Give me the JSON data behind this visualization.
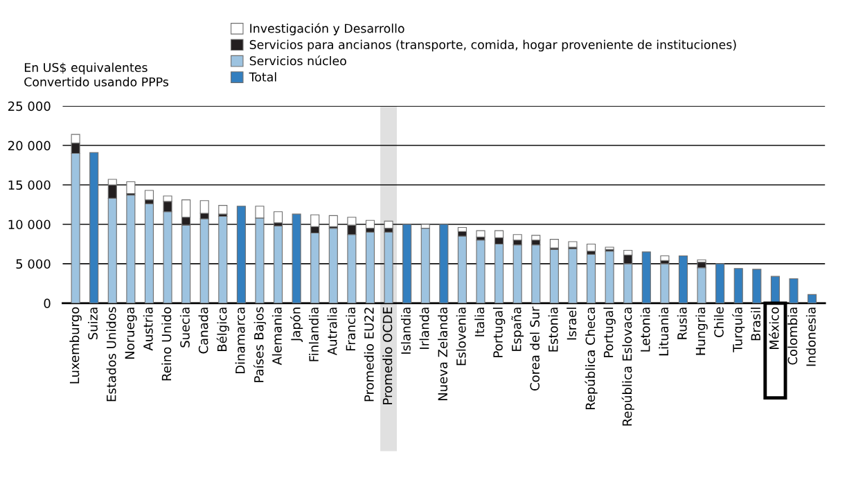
{
  "chart_data": {
    "type": "bar",
    "stacked": true,
    "ylabel": "En US$ equivalentes\nConvertido usando PPPs",
    "categories": [
      "Luxemburgo",
      "Suiza",
      "Estados Unidos",
      "Noruega",
      "Austria",
      "Reino Unido",
      "Suecia",
      "Canada",
      "Bélgica",
      "Dinamarca",
      "Países Bajos",
      "Alemania",
      "Japón",
      "Finlandia",
      "Autralia",
      "Francia",
      "Promedio EU22",
      "Promedio OCDE",
      "Islandia",
      "Irlanda",
      "Nueva Zelanda",
      "Eslovenia",
      "Italia",
      "Portugal",
      "España",
      "Corea del Sur",
      "Estonia",
      "Israel",
      "República Checa",
      "Portugal",
      "República Eslovaca",
      "Letonia",
      "Lituania",
      "Rusia",
      "Hungria",
      "Chile",
      "Turquía",
      "Brasil",
      "México",
      "Colombia",
      "Indonesia"
    ],
    "series": [
      {
        "name": "Total",
        "color": "#337fbf",
        "values": [
          null,
          19100,
          null,
          null,
          null,
          null,
          null,
          null,
          null,
          12300,
          null,
          null,
          11300,
          null,
          null,
          null,
          null,
          null,
          10000,
          null,
          10000,
          null,
          null,
          null,
          null,
          null,
          null,
          null,
          null,
          null,
          null,
          6500,
          null,
          6000,
          null,
          5000,
          4400,
          4300,
          3400,
          3100,
          1100
        ]
      },
      {
        "name": "Servicios núcleo",
        "color": "#9dc3e0",
        "values": [
          19000,
          null,
          13300,
          13700,
          12600,
          11600,
          9900,
          10700,
          11000,
          null,
          10800,
          9800,
          null,
          8900,
          9500,
          8700,
          9000,
          9000,
          null,
          9500,
          null,
          8500,
          8000,
          7500,
          7400,
          7400,
          6800,
          6900,
          6200,
          6600,
          5000,
          null,
          5000,
          null,
          4500,
          null,
          null,
          null,
          null,
          null,
          null
        ]
      },
      {
        "name": "Servicios para ancianos (transporte, comida, hogar proveniente de instituciones)",
        "color": "#231f20",
        "values": [
          1300,
          null,
          1700,
          200,
          500,
          1300,
          1000,
          700,
          300,
          null,
          null,
          400,
          null,
          800,
          200,
          1200,
          500,
          500,
          null,
          null,
          null,
          600,
          400,
          800,
          600,
          600,
          200,
          200,
          400,
          200,
          1100,
          null,
          400,
          null,
          700,
          null,
          null,
          null,
          null,
          null,
          null
        ]
      },
      {
        "name": "Investigación y Desarrollo",
        "color": "#ffffff",
        "values": [
          1100,
          null,
          700,
          1500,
          1200,
          700,
          2200,
          1600,
          1100,
          null,
          1500,
          1400,
          null,
          1500,
          1400,
          1000,
          1000,
          900,
          null,
          500,
          null,
          500,
          800,
          900,
          700,
          600,
          1100,
          700,
          900,
          300,
          600,
          null,
          600,
          null,
          300,
          null,
          null,
          null,
          null,
          null,
          null
        ]
      }
    ],
    "ylim": [
      0,
      25000
    ],
    "yticks": [
      0,
      {
        "value": 5000,
        "label": "5 000"
      },
      {
        "value": 10000,
        "label": "10 000"
      },
      {
        "value": 15000,
        "label": "15 000"
      },
      {
        "value": 20000,
        "label": "20 000"
      },
      {
        "value": 25000,
        "label": "25 000"
      }
    ],
    "grid": "y",
    "legend": "top",
    "bands": [
      {
        "axis": "x",
        "from": "Promedio OCDE",
        "to": "Promedio OCDE",
        "color": "#e0e0e0"
      }
    ]
  }
}
